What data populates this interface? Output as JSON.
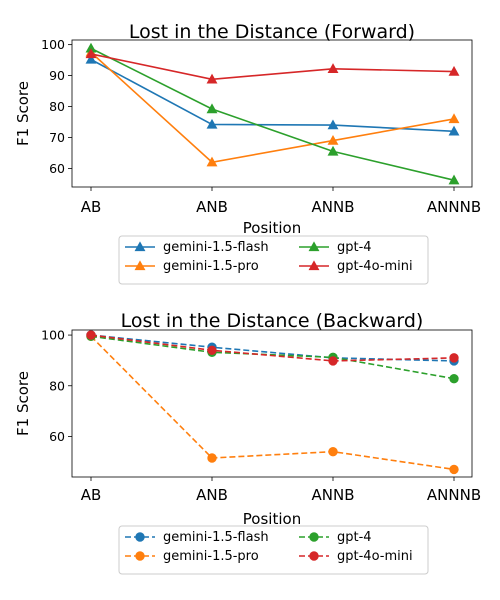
{
  "chart_data": [
    {
      "type": "line",
      "title": "Lost in the Distance (Forward)",
      "xlabel": "Position",
      "ylabel": "F1 Score",
      "categories": [
        "AB",
        "ANB",
        "ANNB",
        "ANNNB"
      ],
      "ylim": [
        54,
        101.5
      ],
      "yticks": [
        60,
        70,
        80,
        90,
        100
      ],
      "marker": "triangle",
      "line_style": "solid",
      "grid": false,
      "legend_placement": "below, 2 columns",
      "series": [
        {
          "name": "gemini-1.5-flash",
          "color": "#1f77b4",
          "values": [
            95.2,
            74.2,
            74.0,
            72.0
          ]
        },
        {
          "name": "gemini-1.5-pro",
          "color": "#ff7f0e",
          "values": [
            97.5,
            62.0,
            69.0,
            76.0
          ]
        },
        {
          "name": "gpt-4",
          "color": "#2ca02c",
          "values": [
            98.8,
            79.2,
            65.5,
            56.2
          ]
        },
        {
          "name": "gpt-4o-mini",
          "color": "#d62728",
          "values": [
            97.0,
            88.8,
            92.2,
            91.3
          ]
        }
      ]
    },
    {
      "type": "line",
      "title": "Lost in the Distance (Backward)",
      "xlabel": "Position",
      "ylabel": "F1 Score",
      "categories": [
        "AB",
        "ANB",
        "ANNB",
        "ANNNB"
      ],
      "ylim": [
        44,
        102
      ],
      "yticks": [
        60,
        80,
        100
      ],
      "marker": "circle",
      "line_style": "dashed",
      "grid": false,
      "legend_placement": "below, 2 columns",
      "series": [
        {
          "name": "gemini-1.5-flash",
          "color": "#1f77b4",
          "values": [
            100.0,
            95.2,
            91.0,
            89.8
          ]
        },
        {
          "name": "gemini-1.5-pro",
          "color": "#ff7f0e",
          "values": [
            99.5,
            51.5,
            54.0,
            47.0
          ]
        },
        {
          "name": "gpt-4",
          "color": "#2ca02c",
          "values": [
            99.5,
            93.2,
            91.2,
            82.8
          ]
        },
        {
          "name": "gpt-4o-mini",
          "color": "#d62728",
          "values": [
            100.0,
            94.0,
            89.8,
            91.0
          ]
        }
      ]
    }
  ]
}
